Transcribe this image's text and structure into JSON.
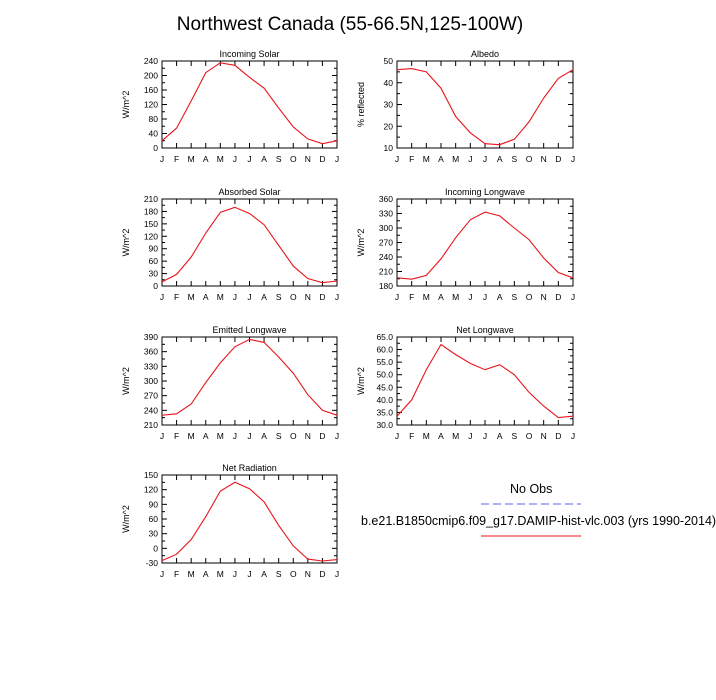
{
  "title": "Northwest Canada (55-66.5N,125-100W)",
  "months": [
    "J",
    "F",
    "M",
    "A",
    "M",
    "J",
    "J",
    "A",
    "S",
    "O",
    "N",
    "D",
    "J"
  ],
  "colors": {
    "model": "#e8141c",
    "obs": "#7d7dff",
    "frame": "#000000"
  },
  "legend": {
    "obs_label": "No Obs",
    "model_label": "b.e21.B1850cmip6.f09_g17.DAMIP-hist-vlc.003 (yrs 1990-2014)"
  },
  "chart_data": [
    {
      "type": "line",
      "title": "Incoming Solar",
      "xlabel": "",
      "ylabel": "W/m^2",
      "ylim": [
        0,
        240
      ],
      "yticks": [
        "0",
        "40",
        "80",
        "120",
        "160",
        "200",
        "240"
      ],
      "categories": [
        "J",
        "F",
        "M",
        "A",
        "M",
        "J",
        "J",
        "A",
        "S",
        "O",
        "N",
        "D",
        "J"
      ],
      "series": [
        {
          "values": [
            20,
            55,
            130,
            208,
            235,
            228,
            195,
            165,
            110,
            58,
            25,
            12,
            20
          ]
        }
      ]
    },
    {
      "type": "line",
      "title": "Albedo",
      "xlabel": "",
      "ylabel": "% reflected",
      "ylim": [
        10,
        50
      ],
      "yticks": [
        "10",
        "20",
        "30",
        "40",
        "50"
      ],
      "categories": [
        "J",
        "F",
        "M",
        "A",
        "M",
        "J",
        "J",
        "A",
        "S",
        "O",
        "N",
        "D",
        "J"
      ],
      "series": [
        {
          "values": [
            46,
            46.5,
            45,
            37.5,
            24.5,
            17,
            12,
            11.5,
            14,
            22,
            33,
            42,
            46
          ]
        }
      ]
    },
    {
      "type": "line",
      "title": "Absorbed Solar",
      "xlabel": "",
      "ylabel": "W/m^2",
      "ylim": [
        0,
        210
      ],
      "yticks": [
        "0",
        "30",
        "60",
        "90",
        "120",
        "150",
        "180",
        "210"
      ],
      "categories": [
        "J",
        "F",
        "M",
        "A",
        "M",
        "J",
        "J",
        "A",
        "S",
        "O",
        "N",
        "D",
        "J"
      ],
      "series": [
        {
          "values": [
            10,
            28,
            70,
            128,
            178,
            190,
            175,
            148,
            98,
            48,
            18,
            8,
            12
          ]
        }
      ]
    },
    {
      "type": "line",
      "title": "Incoming Longwave",
      "xlabel": "",
      "ylabel": "W/m^2",
      "ylim": [
        180,
        360
      ],
      "yticks": [
        "180",
        "210",
        "240",
        "270",
        "300",
        "330",
        "360"
      ],
      "categories": [
        "J",
        "F",
        "M",
        "A",
        "M",
        "J",
        "J",
        "A",
        "S",
        "O",
        "N",
        "D",
        "J"
      ],
      "series": [
        {
          "values": [
            197,
            194,
            202,
            236,
            280,
            317,
            333,
            325,
            300,
            276,
            238,
            208,
            197
          ]
        }
      ]
    },
    {
      "type": "line",
      "title": "Emitted Longwave",
      "xlabel": "",
      "ylabel": "W/m^2",
      "ylim": [
        210,
        390
      ],
      "yticks": [
        "210",
        "240",
        "270",
        "300",
        "330",
        "360",
        "390"
      ],
      "categories": [
        "J",
        "F",
        "M",
        "A",
        "M",
        "J",
        "J",
        "A",
        "S",
        "O",
        "N",
        "D",
        "J"
      ],
      "series": [
        {
          "values": [
            230,
            233,
            253,
            297,
            337,
            370,
            385,
            379,
            349,
            316,
            272,
            240,
            230
          ]
        }
      ]
    },
    {
      "type": "line",
      "title": "Net Longwave",
      "xlabel": "",
      "ylabel": "W/m^2",
      "ylim": [
        30,
        65
      ],
      "yticks": [
        "30.0",
        "35.0",
        "40.0",
        "45.0",
        "50.0",
        "55.0",
        "60.0",
        "65.0"
      ],
      "categories": [
        "J",
        "F",
        "M",
        "A",
        "M",
        "J",
        "J",
        "A",
        "S",
        "O",
        "N",
        "D",
        "J"
      ],
      "series": [
        {
          "values": [
            33.5,
            40,
            52,
            62,
            58,
            54.5,
            52,
            54,
            50,
            43,
            37.5,
            33,
            33.5
          ]
        }
      ]
    },
    {
      "type": "line",
      "title": "Net Radiation",
      "xlabel": "",
      "ylabel": "W/m^2",
      "ylim": [
        -30,
        150
      ],
      "yticks": [
        "-30",
        "0",
        "30",
        "60",
        "90",
        "120",
        "150"
      ],
      "categories": [
        "J",
        "F",
        "M",
        "A",
        "M",
        "J",
        "J",
        "A",
        "S",
        "O",
        "N",
        "D",
        "J"
      ],
      "series": [
        {
          "values": [
            -25,
            -12,
            18,
            65,
            117,
            135,
            122,
            95,
            47,
            5,
            -22,
            -26,
            -23
          ]
        }
      ]
    }
  ]
}
